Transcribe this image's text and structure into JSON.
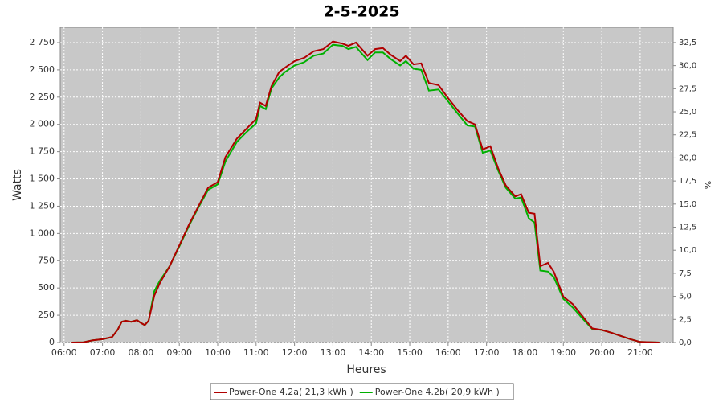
{
  "chart_data": {
    "type": "line",
    "title": "2-5-2025",
    "xlabel": "Heures",
    "ylabel": "Watts",
    "y2label": "%",
    "x": [
      6.2,
      6.5,
      6.75,
      7.0,
      7.25,
      7.4,
      7.5,
      7.6,
      7.75,
      7.9,
      8.0,
      8.1,
      8.2,
      8.35,
      8.5,
      8.75,
      9.0,
      9.25,
      9.5,
      9.75,
      10.0,
      10.2,
      10.5,
      10.75,
      11.0,
      11.1,
      11.25,
      11.4,
      11.6,
      11.75,
      12.0,
      12.25,
      12.5,
      12.75,
      13.0,
      13.25,
      13.4,
      13.6,
      13.75,
      13.9,
      14.1,
      14.3,
      14.5,
      14.75,
      14.9,
      15.1,
      15.3,
      15.5,
      15.75,
      16.0,
      16.25,
      16.5,
      16.7,
      16.9,
      17.1,
      17.3,
      17.5,
      17.75,
      17.9,
      18.1,
      18.25,
      18.4,
      18.6,
      18.75,
      19.0,
      19.25,
      19.5,
      19.75,
      20.0,
      20.25,
      20.5,
      20.75,
      21.0,
      21.5
    ],
    "series": [
      {
        "name": "Power-One 4.2a( 21,3 kWh )",
        "color": "#b00000",
        "values": [
          0,
          2,
          20,
          30,
          50,
          120,
          190,
          200,
          190,
          205,
          180,
          160,
          200,
          430,
          550,
          700,
          890,
          1080,
          1250,
          1420,
          1470,
          1700,
          1870,
          1960,
          2050,
          2200,
          2170,
          2350,
          2480,
          2520,
          2580,
          2610,
          2670,
          2690,
          2760,
          2740,
          2720,
          2750,
          2690,
          2630,
          2690,
          2700,
          2640,
          2580,
          2630,
          2550,
          2560,
          2380,
          2360,
          2240,
          2130,
          2030,
          2000,
          1770,
          1800,
          1600,
          1440,
          1340,
          1360,
          1190,
          1180,
          700,
          730,
          650,
          420,
          350,
          240,
          130,
          115,
          90,
          60,
          30,
          5,
          0
        ]
      },
      {
        "name": "Power-One 4.2b( 20,9 kWh )",
        "color": "#00b000",
        "values": [
          0,
          2,
          20,
          30,
          50,
          120,
          190,
          200,
          190,
          205,
          180,
          160,
          200,
          470,
          570,
          700,
          880,
          1070,
          1240,
          1400,
          1450,
          1660,
          1840,
          1930,
          2010,
          2170,
          2140,
          2330,
          2430,
          2480,
          2540,
          2570,
          2630,
          2650,
          2730,
          2720,
          2690,
          2710,
          2650,
          2590,
          2660,
          2660,
          2600,
          2540,
          2580,
          2510,
          2500,
          2310,
          2320,
          2210,
          2100,
          1990,
          1980,
          1740,
          1760,
          1580,
          1420,
          1320,
          1330,
          1140,
          1100,
          660,
          650,
          600,
          400,
          320,
          220,
          125,
          115,
          90,
          60,
          30,
          5,
          0
        ]
      }
    ],
    "xlim": [
      5.9,
      21.86
    ],
    "xticks": [
      {
        "value": 6,
        "label": "06:00"
      },
      {
        "value": 7,
        "label": "07:00"
      },
      {
        "value": 8,
        "label": "08:00"
      },
      {
        "value": 9,
        "label": "09:00"
      },
      {
        "value": 10,
        "label": "10:00"
      },
      {
        "value": 11,
        "label": "11:00"
      },
      {
        "value": 12,
        "label": "12:00"
      },
      {
        "value": 13,
        "label": "13:00"
      },
      {
        "value": 14,
        "label": "14:00"
      },
      {
        "value": 15,
        "label": "15:00"
      },
      {
        "value": 16,
        "label": "16:00"
      },
      {
        "value": 17,
        "label": "17:00"
      },
      {
        "value": 18,
        "label": "18:00"
      },
      {
        "value": 19,
        "label": "19:00"
      },
      {
        "value": 20,
        "label": "20:00"
      },
      {
        "value": 21,
        "label": "21:00"
      }
    ],
    "ylim": [
      0,
      2890
    ],
    "yticks": [
      0,
      250,
      500,
      750,
      {
        "value": 1000,
        "label": "1 000"
      },
      {
        "value": 1250,
        "label": "1 250"
      },
      {
        "value": 1500,
        "label": "1 500"
      },
      {
        "value": 1750,
        "label": "1 750"
      },
      {
        "value": 2000,
        "label": "2 000"
      },
      {
        "value": 2250,
        "label": "2 250"
      },
      {
        "value": 2500,
        "label": "2 500"
      },
      {
        "value": 2750,
        "label": "2 750"
      }
    ],
    "y2lim": [
      0,
      34.15
    ],
    "y2ticks": [
      {
        "value": 0,
        "label": "0,0"
      },
      {
        "value": 2.5,
        "label": "2,5"
      },
      {
        "value": 5,
        "label": "5,0"
      },
      {
        "value": 7.5,
        "label": "7,5"
      },
      {
        "value": 10,
        "label": "10,0"
      },
      {
        "value": 12.5,
        "label": "12,5"
      },
      {
        "value": 15,
        "label": "15,0"
      },
      {
        "value": 17.5,
        "label": "17,5"
      },
      {
        "value": 20,
        "label": "20,0"
      },
      {
        "value": 22.5,
        "label": "22,5"
      },
      {
        "value": 25,
        "label": "25,0"
      },
      {
        "value": 27.5,
        "label": "27,5"
      },
      {
        "value": 30,
        "label": "30,0"
      },
      {
        "value": 32.5,
        "label": "32,5"
      }
    ],
    "grid": true
  }
}
